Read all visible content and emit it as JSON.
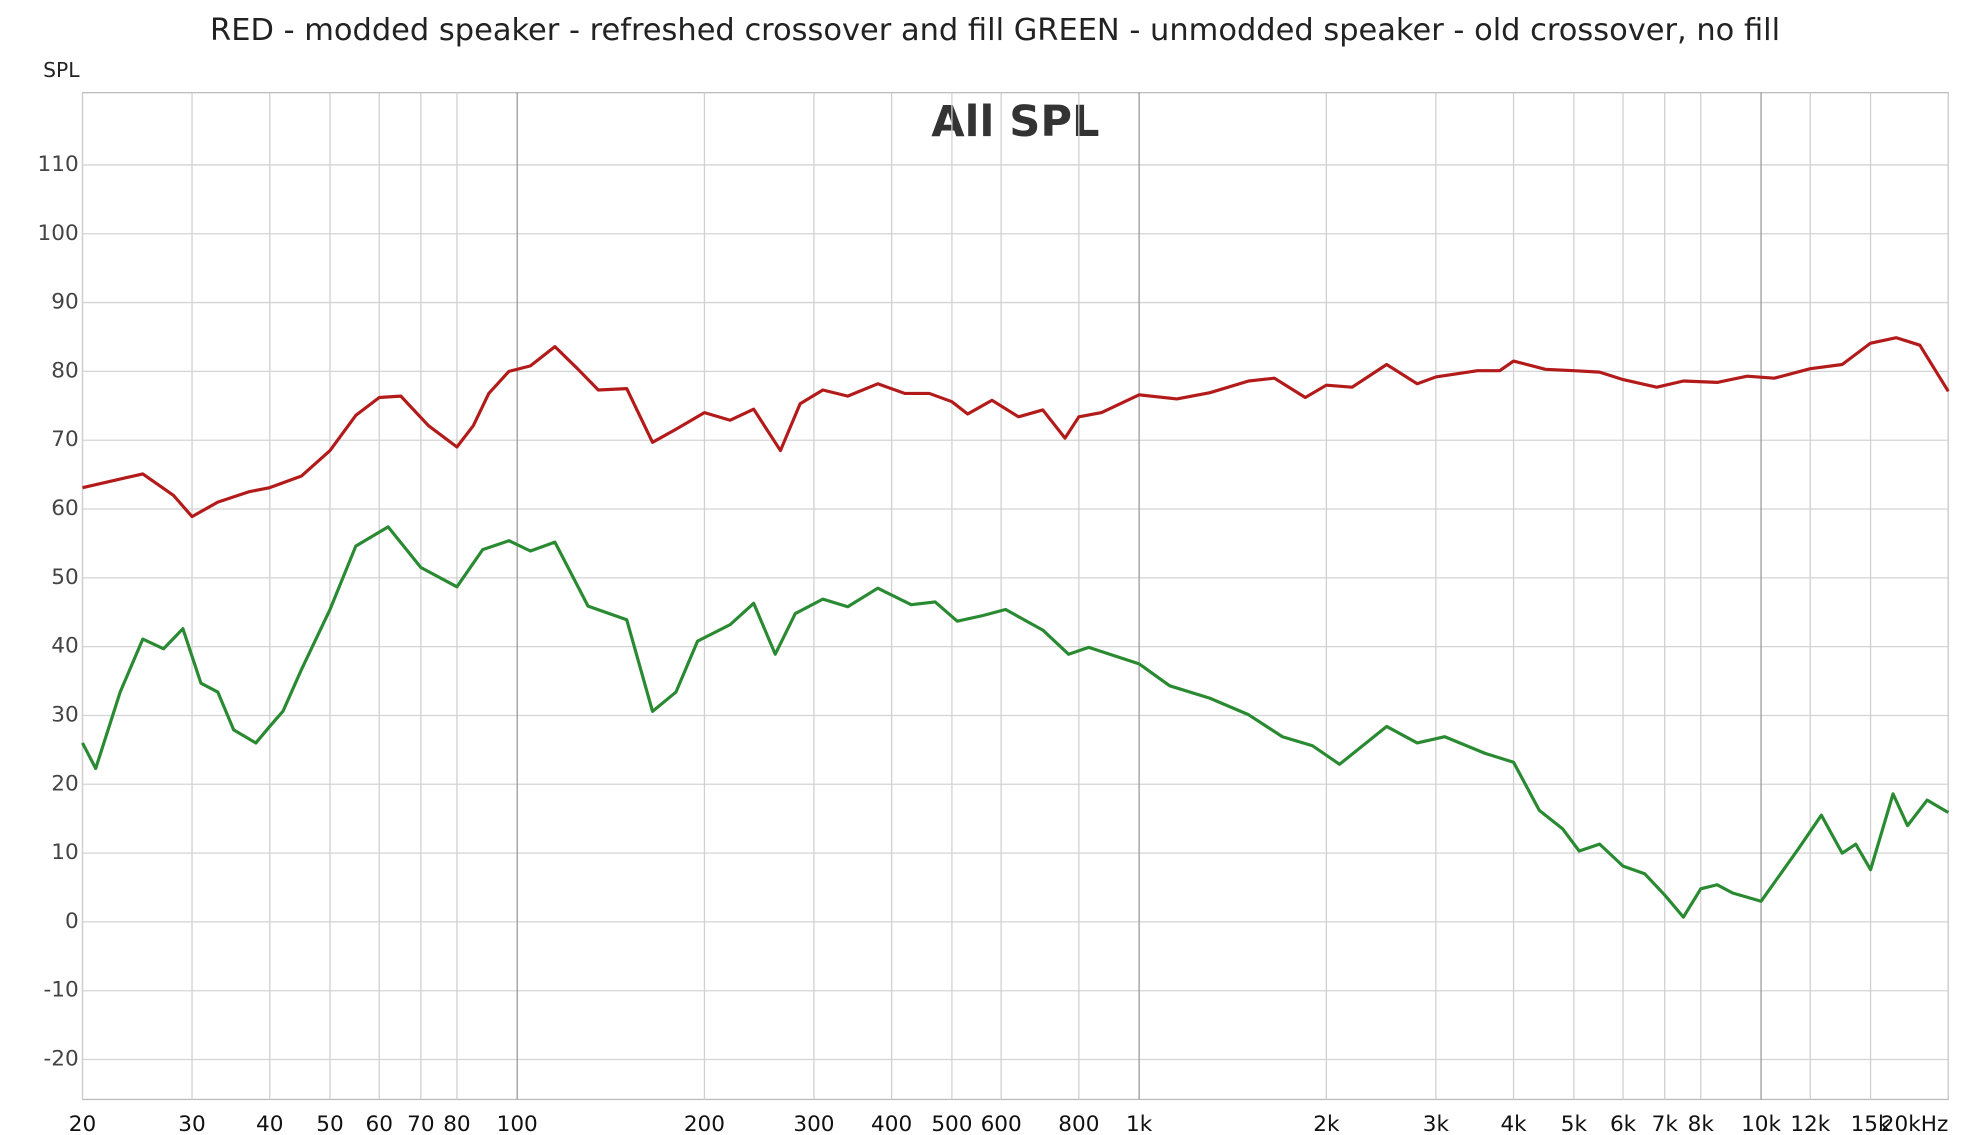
{
  "chart_data": {
    "type": "line",
    "title": "RED - modded speaker - refreshed crossover and fill GREEN - unmodded speaker - old crossover, no fill",
    "annotation": "All SPL",
    "y_label": "SPL",
    "log_x": true,
    "grid": true,
    "xlim": [
      20,
      20000
    ],
    "ylim": [
      -25.8,
      120.5
    ],
    "xticks": [
      20,
      30,
      40,
      50,
      60,
      70,
      80,
      100,
      200,
      300,
      400,
      500,
      600,
      800,
      {
        "value": 1000,
        "label": "1k"
      },
      {
        "value": 2000,
        "label": "2k"
      },
      {
        "value": 3000,
        "label": "3k"
      },
      {
        "value": 4000,
        "label": "4k"
      },
      {
        "value": 5000,
        "label": "5k"
      },
      {
        "value": 6000,
        "label": "6k"
      },
      {
        "value": 7000,
        "label": "7k"
      },
      {
        "value": 8000,
        "label": "8k"
      },
      {
        "value": 10000,
        "label": "10k"
      },
      {
        "value": 12000,
        "label": "12k"
      },
      {
        "value": 15000,
        "label": "15k"
      },
      {
        "value": 20000,
        "label": "20kHz"
      }
    ],
    "yticks": [
      -20,
      -10,
      0,
      10,
      20,
      30,
      40,
      50,
      60,
      70,
      80,
      90,
      100,
      110
    ],
    "series": [
      {
        "color": "#b31b1b",
        "x": [
          20,
          25,
          28,
          30,
          33,
          37,
          40,
          45,
          50,
          55,
          60,
          65,
          72,
          80,
          85,
          90,
          97,
          105,
          115,
          125,
          135,
          150,
          165,
          180,
          200,
          220,
          240,
          265,
          285,
          310,
          340,
          380,
          420,
          460,
          500,
          530,
          580,
          640,
          700,
          760,
          800,
          870,
          1000,
          1150,
          1300,
          1500,
          1650,
          1850,
          2000,
          2200,
          2500,
          2800,
          3000,
          3500,
          3800,
          4000,
          4500,
          5000,
          5500,
          6000,
          6800,
          7500,
          8500,
          9500,
          10500,
          12000,
          13500,
          15000,
          16500,
          18000,
          20000
        ],
        "values": [
          63.1,
          65.1,
          62,
          58.9,
          61,
          62.5,
          63.1,
          64.8,
          68.5,
          73.6,
          76.2,
          76.4,
          72.1,
          69,
          72.1,
          76.8,
          80,
          80.8,
          83.6,
          80.4,
          77.3,
          77.5,
          69.7,
          71.6,
          74,
          72.9,
          74.5,
          68.5,
          75.3,
          77.3,
          76.4,
          78.2,
          76.8,
          76.8,
          75.6,
          73.8,
          75.8,
          73.4,
          74.4,
          70.3,
          73.4,
          74,
          76.6,
          76,
          76.9,
          78.6,
          79,
          76.2,
          78,
          77.7,
          81,
          78.2,
          79.2,
          80.1,
          80.1,
          81.5,
          80.3,
          80.1,
          79.9,
          78.8,
          77.7,
          78.6,
          78.4,
          79.3,
          79,
          80.4,
          81,
          84.1,
          84.9,
          83.8,
          77.1
        ]
      },
      {
        "color": "#2a8a32",
        "x": [
          20,
          21,
          23,
          25,
          27,
          29,
          31,
          33,
          35,
          38,
          40,
          42,
          45,
          50,
          55,
          62,
          70,
          80,
          88,
          97,
          105,
          115,
          130,
          150,
          165,
          180,
          195,
          220,
          240,
          260,
          280,
          310,
          340,
          380,
          430,
          470,
          510,
          560,
          610,
          700,
          770,
          830,
          1000,
          1120,
          1300,
          1500,
          1700,
          1900,
          2100,
          2500,
          2800,
          3100,
          3600,
          4000,
          4400,
          4800,
          5100,
          5500,
          6000,
          6500,
          7000,
          7500,
          8000,
          8500,
          9000,
          10000,
          10500,
          11500,
          12500,
          13500,
          14200,
          15000,
          16300,
          17200,
          18500,
          20000
        ],
        "values": [
          26,
          22.3,
          33.4,
          41.1,
          39.7,
          42.6,
          34.7,
          33.4,
          27.9,
          26,
          28.4,
          30.6,
          36.7,
          45.4,
          54.6,
          57.4,
          51.5,
          48.7,
          54.1,
          55.4,
          53.9,
          55.2,
          45.9,
          43.9,
          30.6,
          33.4,
          40.8,
          43.2,
          46.3,
          38.9,
          44.8,
          46.9,
          45.8,
          48.5,
          46.1,
          46.5,
          43.7,
          44.5,
          45.4,
          42.4,
          38.9,
          39.9,
          37.5,
          34.3,
          32.5,
          30.1,
          26.9,
          25.6,
          22.9,
          28.4,
          26,
          26.9,
          24.5,
          23.2,
          16.2,
          13.5,
          10.3,
          11.3,
          8.1,
          7,
          3.9,
          0.7,
          4.8,
          5.4,
          4.2,
          3,
          5.7,
          10.7,
          15.5,
          10,
          11.3,
          7.6,
          18.6,
          14,
          17.7,
          15.9
        ]
      }
    ]
  }
}
